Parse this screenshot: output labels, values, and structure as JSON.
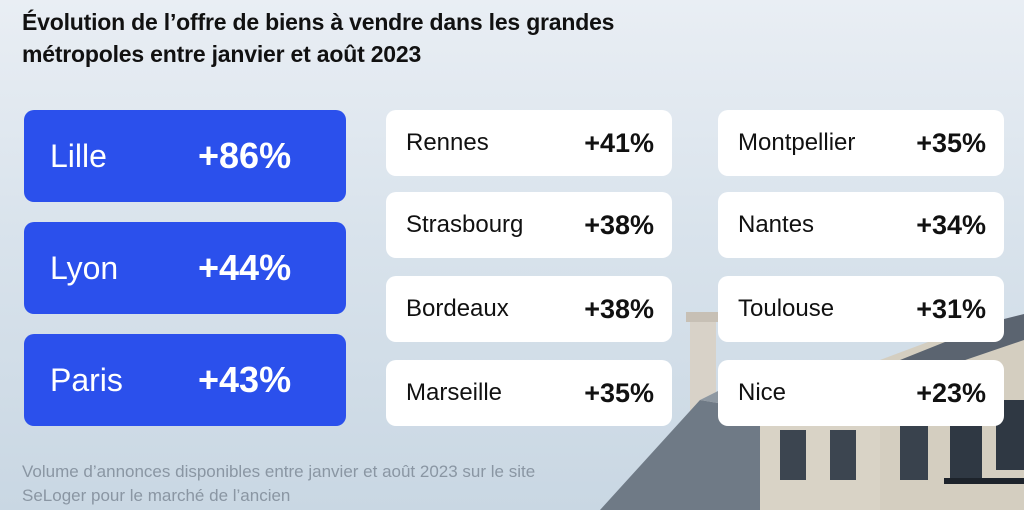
{
  "title": "Évolution de l’offre de biens à vendre dans les grandes métropoles entre janvier et août 2023",
  "footnote": "Volume d’annonces disponibles entre janvier et août 2023 sur le site SeLoger pour le marché de l’ancien",
  "colors": {
    "highlight": "#2b50ec",
    "card": "#ffffff",
    "text": "#111111"
  },
  "chart_data": {
    "type": "table",
    "title": "Évolution de l’offre de biens à vendre dans les grandes métropoles entre janvier et août 2023",
    "unit": "%",
    "highlighted": [
      {
        "city": "Lille",
        "value": 86,
        "label": "+86%"
      },
      {
        "city": "Lyon",
        "value": 44,
        "label": "+44%"
      },
      {
        "city": "Paris",
        "value": 43,
        "label": "+43%"
      }
    ],
    "column2": [
      {
        "city": "Rennes",
        "value": 41,
        "label": "+41%"
      },
      {
        "city": "Strasbourg",
        "value": 38,
        "label": "+38%"
      },
      {
        "city": "Bordeaux",
        "value": 38,
        "label": "+38%"
      },
      {
        "city": "Marseille",
        "value": 35,
        "label": "+35%"
      }
    ],
    "column3": [
      {
        "city": "Montpellier",
        "value": 35,
        "label": "+35%"
      },
      {
        "city": "Nantes",
        "value": 34,
        "label": "+34%"
      },
      {
        "city": "Toulouse",
        "value": 31,
        "label": "+31%"
      },
      {
        "city": "Nice",
        "value": 23,
        "label": "+23%"
      }
    ]
  }
}
